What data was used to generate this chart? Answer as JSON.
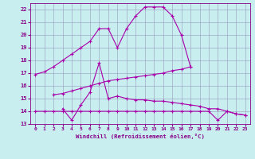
{
  "xlabel": "Windchill (Refroidissement éolien,°C)",
  "bg_color": "#c8eef0",
  "line_color": "#aa00aa",
  "grid_color": "#9999bb",
  "xlim": [
    -0.5,
    23.5
  ],
  "ylim": [
    13,
    22.5
  ],
  "yticks": [
    13,
    14,
    15,
    16,
    17,
    18,
    19,
    20,
    21,
    22
  ],
  "xticks": [
    0,
    1,
    2,
    3,
    4,
    5,
    6,
    7,
    8,
    9,
    10,
    11,
    12,
    13,
    14,
    15,
    16,
    17,
    18,
    19,
    20,
    21,
    22,
    23
  ],
  "lines": [
    {
      "x": [
        0,
        1,
        2,
        3,
        4,
        5,
        6,
        7,
        8,
        9,
        10,
        11,
        12,
        13,
        14,
        15,
        16,
        17
      ],
      "y": [
        16.9,
        17.1,
        17.5,
        18.0,
        18.5,
        19.0,
        19.5,
        20.5,
        20.5,
        19.0,
        20.5,
        21.5,
        22.2,
        22.2,
        22.2,
        21.5,
        20.0,
        17.5
      ]
    },
    {
      "x": [
        2,
        3,
        4,
        5,
        6,
        7,
        8,
        9,
        10,
        11,
        12,
        13,
        14,
        15,
        16,
        17
      ],
      "y": [
        15.3,
        15.4,
        15.6,
        15.8,
        16.0,
        16.2,
        16.4,
        16.5,
        16.6,
        16.7,
        16.8,
        16.9,
        17.0,
        17.2,
        17.3,
        17.5
      ]
    },
    {
      "x": [
        3,
        4,
        5,
        6,
        7,
        8,
        9,
        10,
        11,
        12,
        13,
        14,
        15,
        16,
        17,
        18,
        19,
        20,
        21,
        22,
        23
      ],
      "y": [
        14.2,
        13.3,
        14.5,
        15.5,
        17.8,
        15.0,
        15.2,
        15.0,
        14.9,
        14.9,
        14.8,
        14.8,
        14.7,
        14.6,
        14.5,
        14.4,
        14.2,
        14.2,
        14.0,
        13.8,
        13.7
      ]
    },
    {
      "x": [
        0,
        1,
        2,
        3,
        4,
        5,
        6,
        7,
        8,
        9,
        10,
        11,
        12,
        13,
        14,
        15,
        16,
        17,
        18,
        19,
        20,
        21,
        22,
        23
      ],
      "y": [
        14.0,
        14.0,
        14.0,
        14.0,
        14.0,
        14.0,
        14.0,
        14.0,
        14.0,
        14.0,
        14.0,
        14.0,
        14.0,
        14.0,
        14.0,
        14.0,
        14.0,
        14.0,
        14.0,
        14.0,
        13.3,
        14.0,
        13.8,
        13.7
      ]
    }
  ]
}
